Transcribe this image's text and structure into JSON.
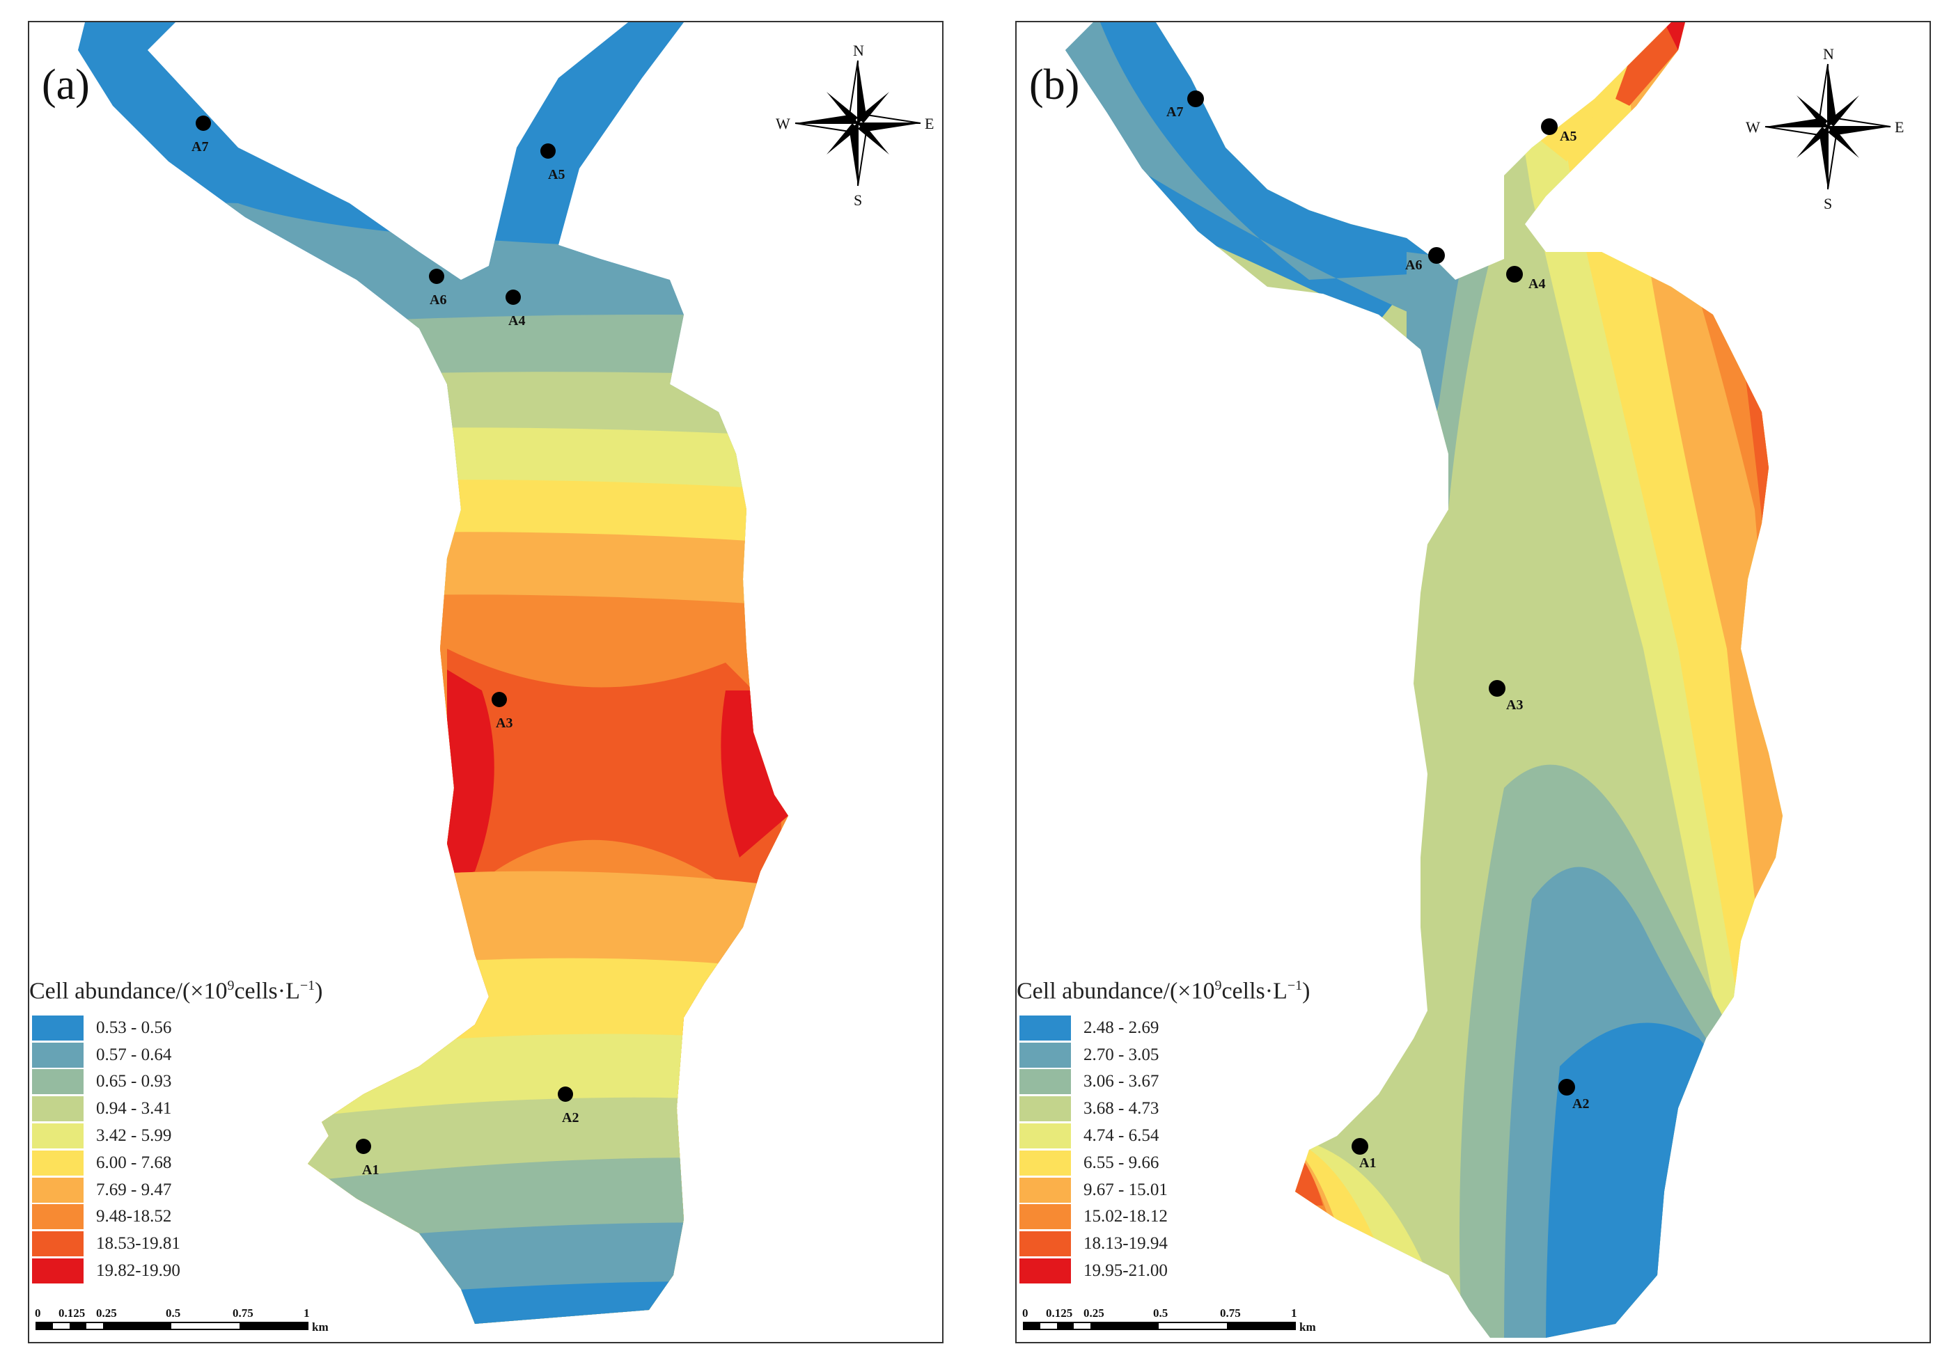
{
  "panel_a": {
    "label": "(a)",
    "legend_title_prefix": "Cell abundance/(×10",
    "legend_title_sup": "9",
    "legend_title_mid": "cells·L",
    "legend_title_sup2": "−1",
    "legend_title_suffix": ")",
    "legend": [
      {
        "label": "0.53 - 0.56",
        "color": "#2b8ccc"
      },
      {
        "label": "0.57 - 0.64",
        "color": "#67a3b5"
      },
      {
        "label": "0.65 - 0.93",
        "color": "#95bba0"
      },
      {
        "label": "0.94 - 3.41",
        "color": "#c3d48c"
      },
      {
        "label": "3.42 - 5.99",
        "color": "#e8ea7a"
      },
      {
        "label": "6.00 - 7.68",
        "color": "#fde15a"
      },
      {
        "label": "7.69 - 9.47",
        "color": "#fbb04a"
      },
      {
        "label": "9.48-18.52",
        "color": "#f78a33"
      },
      {
        "label": "18.53-19.81",
        "color": "#f05a24"
      },
      {
        "label": "19.82-19.90",
        "color": "#e3171c"
      }
    ],
    "sites": [
      "A1",
      "A2",
      "A3",
      "A4",
      "A5",
      "A6",
      "A7"
    ]
  },
  "panel_b": {
    "label": "(b)",
    "legend_title_prefix": "Cell abundance/(×10",
    "legend_title_sup": "9",
    "legend_title_mid": "cells·L",
    "legend_title_sup2": "−1",
    "legend_title_suffix": ")",
    "legend": [
      {
        "label": "2.48 - 2.69",
        "color": "#2b8ccc"
      },
      {
        "label": "2.70 - 3.05",
        "color": "#67a3b5"
      },
      {
        "label": "3.06 - 3.67",
        "color": "#95bba0"
      },
      {
        "label": "3.68 - 4.73",
        "color": "#c3d48c"
      },
      {
        "label": "4.74 - 6.54",
        "color": "#e8ea7a"
      },
      {
        "label": "6.55 - 9.66",
        "color": "#fde15a"
      },
      {
        "label": "9.67 - 15.01",
        "color": "#fbb04a"
      },
      {
        "label": "15.02-18.12",
        "color": "#f78a33"
      },
      {
        "label": "18.13-19.94",
        "color": "#f05a24"
      },
      {
        "label": "19.95-21.00",
        "color": "#e3171c"
      }
    ],
    "sites": [
      "A1",
      "A2",
      "A3",
      "A4",
      "A5",
      "A6",
      "A7"
    ]
  },
  "compass": {
    "n": "N",
    "s": "S",
    "e": "E",
    "w": "W"
  },
  "scale": {
    "ticks": [
      "0",
      "0.125",
      "0.25",
      "0.5",
      "0.75",
      "1"
    ],
    "unit": "km"
  }
}
